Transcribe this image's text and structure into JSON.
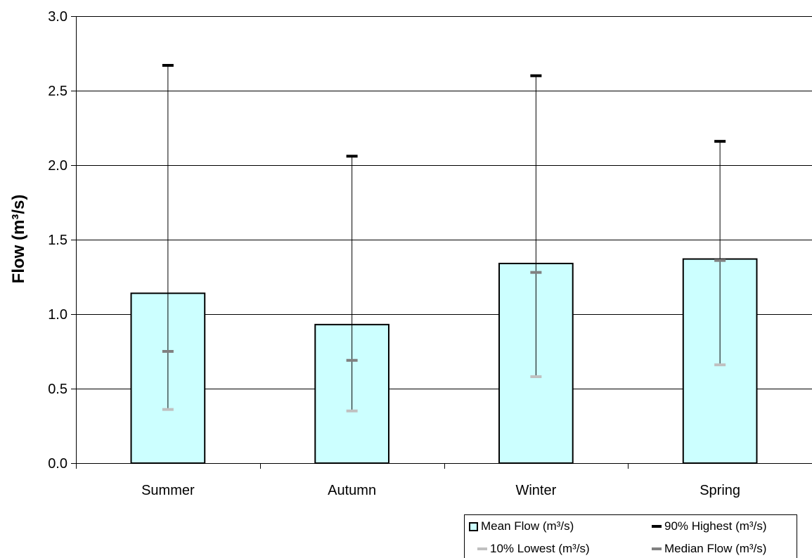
{
  "chart_data": {
    "type": "bar",
    "ylabel": "Flow (m³/s)",
    "xlabel": "",
    "ylim": [
      0,
      3.0
    ],
    "yticks": [
      "0.0",
      "0.5",
      "1.0",
      "1.5",
      "2.0",
      "2.5",
      "3.0"
    ],
    "grid": true,
    "categories": [
      "Summer",
      "Autumn",
      "Winter",
      "Spring"
    ],
    "series": [
      {
        "name": "Mean Flow (m³/s)",
        "values": [
          1.14,
          0.93,
          1.34,
          1.37
        ],
        "color": "#ccffff"
      },
      {
        "name": "90% Highest (m³/s)",
        "values": [
          2.67,
          2.06,
          2.6,
          2.16
        ],
        "color": "#000000"
      },
      {
        "name": "10% Lowest (m³/s)",
        "values": [
          0.36,
          0.35,
          0.58,
          0.66
        ],
        "color": "#c0c0c0"
      },
      {
        "name": "Median Flow (m³/s)",
        "values": [
          0.75,
          0.69,
          1.28,
          1.36
        ],
        "color": "#808080"
      }
    ],
    "legend_position": "bottom-right"
  },
  "legend": {
    "mean": "Mean Flow (m³/s)",
    "high": "90% Highest (m³/s)",
    "low": "10% Lowest (m³/s)",
    "median": "Median Flow (m³/s)"
  }
}
